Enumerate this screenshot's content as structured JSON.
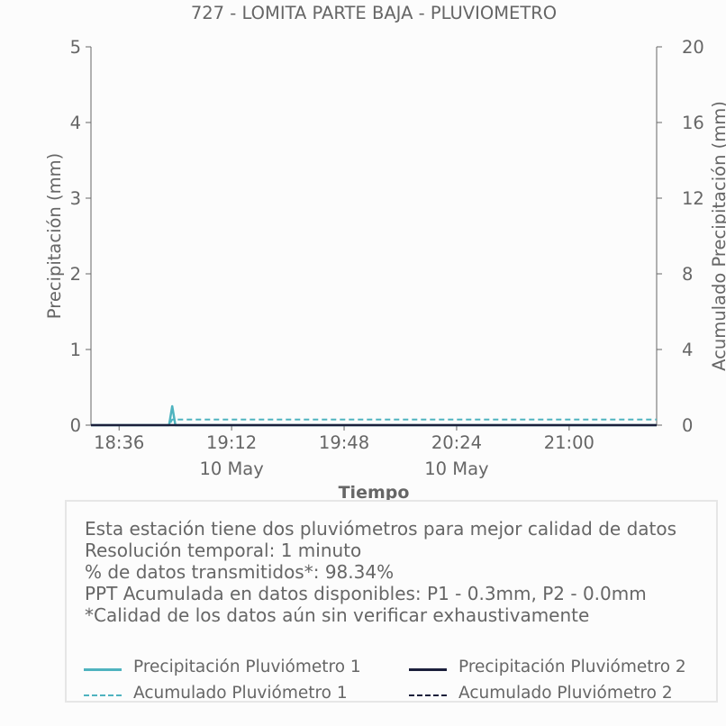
{
  "chart_data": {
    "type": "line",
    "title": "727 - LOMITA PARTE BAJA - PLUVIOMETRO",
    "xlabel": "Tiempo",
    "ylabel": "Precipitación (mm)",
    "y2label": "Acumulado Precipitación (mm)",
    "x_ticks": [
      "18:36",
      "19:12",
      "19:48",
      "20:24",
      "21:00"
    ],
    "x_ticks_minutes": [
      1116,
      1152,
      1188,
      1224,
      1260
    ],
    "x_date_labels": [
      {
        "label": "10 May",
        "at": "19:12"
      },
      {
        "label": "10 May",
        "at": "20:24"
      }
    ],
    "x_range_minutes": [
      1107,
      1288
    ],
    "ylim": [
      0,
      5
    ],
    "yticks": [
      "0",
      "1",
      "2",
      "3",
      "4",
      "5"
    ],
    "y2lim": [
      0,
      20
    ],
    "y2ticks": [
      "0",
      "4",
      "8",
      "12",
      "16",
      "20"
    ],
    "grid": false,
    "series": [
      {
        "name": "Precipitación Pluviómetro 1",
        "axis": "left",
        "style": "solid",
        "color": "#4fb3bf",
        "points": [
          [
            1107,
            0
          ],
          [
            1132,
            0
          ],
          [
            1133,
            0.25
          ],
          [
            1134,
            0
          ],
          [
            1288,
            0
          ]
        ]
      },
      {
        "name": "Precipitación Pluviómetro 2",
        "axis": "left",
        "style": "solid",
        "color": "#1b1f3b",
        "points": [
          [
            1107,
            0
          ],
          [
            1288,
            0
          ]
        ]
      },
      {
        "name": "Acumulado Pluviómetro 1",
        "axis": "right",
        "style": "dashed",
        "color": "#4fb3bf",
        "points": [
          [
            1107,
            0
          ],
          [
            1132,
            0
          ],
          [
            1133,
            0.3
          ],
          [
            1288,
            0.3
          ]
        ]
      },
      {
        "name": "Acumulado Pluviómetro 2",
        "axis": "right",
        "style": "dashed",
        "color": "#1b1f3b",
        "points": [
          [
            1107,
            0
          ],
          [
            1288,
            0
          ]
        ]
      }
    ]
  },
  "info": {
    "line1": "Esta estación tiene dos pluviómetros para mejor calidad de datos",
    "line2": "Resolución temporal: 1 minuto",
    "line3": "% de datos transmitidos*: 98.34%",
    "line4": "PPT Acumulada en datos disponibles: P1 - 0.3mm, P2 - 0.0mm",
    "line5": "*Calidad de los datos aún sin verificar exhaustivamente"
  },
  "legend": {
    "p1": "Precipitación Pluviómetro 1",
    "p2": "Precipitación Pluviómetro 2",
    "a1": "Acumulado Pluviómetro 1",
    "a2": "Acumulado Pluviómetro 2"
  },
  "colors": {
    "p1": "#4fb3bf",
    "p2": "#1b1f3b"
  }
}
